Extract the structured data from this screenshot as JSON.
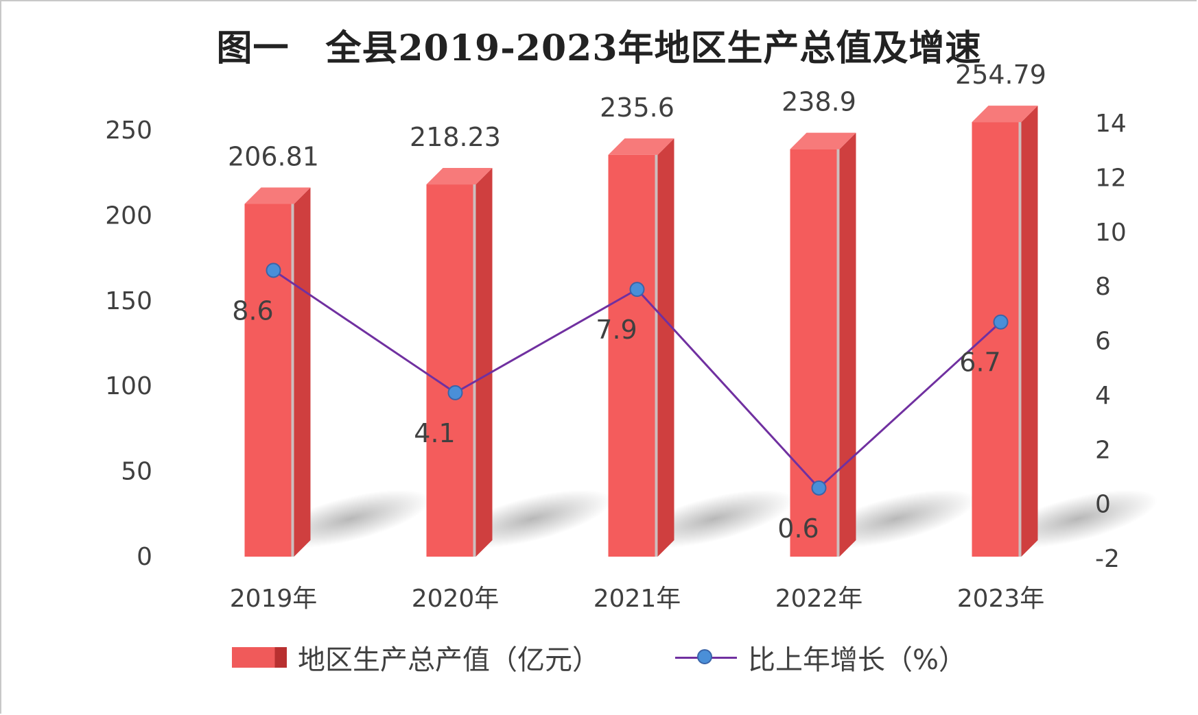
{
  "chart_data": {
    "type": "bar",
    "title": "图一　全县2019-2023年地区生产总值及增速",
    "categories": [
      "2019年",
      "2020年",
      "2021年",
      "2022年",
      "2023年"
    ],
    "series": [
      {
        "name": "地区生产总产值（亿元）",
        "type": "bar",
        "axis": "left",
        "values": [
          206.81,
          218.23,
          235.6,
          238.9,
          254.79
        ],
        "color": "#f05a5a"
      },
      {
        "name": "比上年增长（%）",
        "type": "line",
        "axis": "right",
        "values": [
          8.6,
          4.1,
          7.9,
          0.6,
          6.7
        ],
        "color": "#7030a0",
        "marker_color": "#4a8fd8"
      }
    ],
    "y_left": {
      "ticks": [
        "250",
        "200",
        "150",
        "100",
        "50",
        "0"
      ],
      "range": [
        0,
        250
      ]
    },
    "y_right": {
      "ticks": [
        "14",
        "12",
        "10",
        "8",
        "6",
        "4",
        "2",
        "0",
        "-2"
      ],
      "range": [
        -2,
        14
      ]
    },
    "legend_position": "bottom",
    "grid": false
  }
}
